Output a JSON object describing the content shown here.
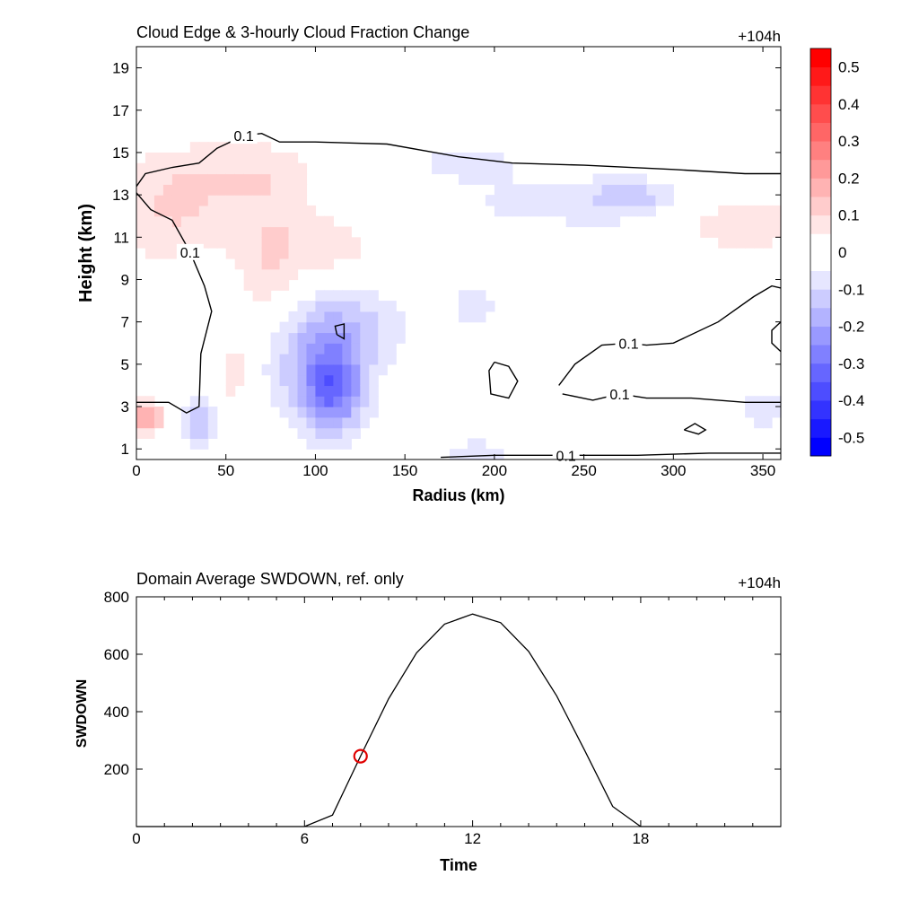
{
  "chart_data": [
    {
      "type": "heatmap",
      "title": "Cloud Edge & 3-hourly Cloud Fraction Change",
      "time_label": "+104h",
      "xlabel": "Radius (km)",
      "ylabel": "Height (km)",
      "xlim": [
        0,
        360
      ],
      "ylim": [
        0.5,
        20
      ],
      "xticks": [
        "0",
        "50",
        "100",
        "150",
        "200",
        "250",
        "300",
        "350"
      ],
      "yticks": [
        "1",
        "3",
        "5",
        "7",
        "9",
        "11",
        "13",
        "15",
        "17",
        "19"
      ],
      "colorbar": {
        "levels": [
          -0.55,
          -0.5,
          -0.45,
          -0.4,
          -0.35,
          -0.3,
          -0.25,
          -0.2,
          -0.15,
          -0.1,
          -0.05,
          0.05,
          0.1,
          0.15,
          0.2,
          0.25,
          0.3,
          0.35,
          0.4,
          0.45,
          0.5,
          0.55
        ],
        "tick_labels": [
          "-0.5",
          "-0.4",
          "-0.3",
          "-0.2",
          "-0.1",
          "0",
          "0.1",
          "0.2",
          "0.3",
          "0.4",
          "0.5"
        ],
        "neg_color": "#0000ff",
        "pos_color": "#ff0000"
      },
      "features": [
        {
          "r": 110,
          "z": 3.8,
          "sr": 12,
          "sz": 1.4,
          "a": -0.26
        },
        {
          "r": 95,
          "z": 5.2,
          "sr": 22,
          "sz": 2.2,
          "a": -0.12
        },
        {
          "r": 120,
          "z": 6.8,
          "sr": 25,
          "sz": 1.4,
          "a": -0.1
        },
        {
          "r": 190,
          "z": 7.8,
          "sr": 14,
          "sz": 1.2,
          "a": -0.06
        },
        {
          "r": 230,
          "z": 12.5,
          "sr": 55,
          "sz": 1.2,
          "a": -0.06
        },
        {
          "r": 275,
          "z": 12.9,
          "sr": 16,
          "sz": 0.6,
          "a": -0.1
        },
        {
          "r": 185,
          "z": 14.6,
          "sr": 25,
          "sz": 0.7,
          "a": -0.06
        },
        {
          "r": 35,
          "z": 2.2,
          "sr": 7,
          "sz": 0.8,
          "a": -0.14
        },
        {
          "r": 350,
          "z": 2.8,
          "sr": 12,
          "sz": 0.6,
          "a": -0.08
        },
        {
          "r": 190,
          "z": 0.9,
          "sr": 25,
          "sz": 0.6,
          "a": -0.06
        },
        {
          "r": 300,
          "z": 5.2,
          "sr": 45,
          "sz": 0.8,
          "a": -0.04
        },
        {
          "r": 5,
          "z": 2.5,
          "sr": 8,
          "sz": 0.5,
          "a": 0.18
        },
        {
          "r": 20,
          "z": 11.8,
          "sr": 25,
          "sz": 1.6,
          "a": 0.09
        },
        {
          "r": 50,
          "z": 14.0,
          "sr": 40,
          "sz": 1.2,
          "a": 0.08
        },
        {
          "r": 75,
          "z": 9.5,
          "sr": 14,
          "sz": 2.8,
          "a": 0.1
        },
        {
          "r": 110,
          "z": 10.5,
          "sr": 20,
          "sz": 1.2,
          "a": 0.08
        },
        {
          "r": 340,
          "z": 11.6,
          "sr": 25,
          "sz": 0.9,
          "a": 0.1
        },
        {
          "r": 55,
          "z": 4.5,
          "sr": 7,
          "sz": 1.5,
          "a": 0.08
        },
        {
          "r": 240,
          "z": 6.0,
          "sr": 12,
          "sz": 1.0,
          "a": 0.05
        },
        {
          "r": 185,
          "z": 10.0,
          "sr": 10,
          "sz": 0.6,
          "a": 0.05
        }
      ],
      "contours": [
        {
          "label": "0.1",
          "points": [
            [
              0,
              13.4
            ],
            [
              5,
              14.0
            ],
            [
              20,
              14.3
            ],
            [
              35,
              14.5
            ],
            [
              45,
              15.2
            ],
            [
              60,
              15.8
            ],
            [
              70,
              15.9
            ],
            [
              80,
              15.5
            ],
            [
              100,
              15.5
            ],
            [
              140,
              15.4
            ],
            [
              180,
              14.8
            ],
            [
              210,
              14.5
            ],
            [
              250,
              14.4
            ],
            [
              300,
              14.2
            ],
            [
              340,
              14.0
            ],
            [
              360,
              14.0
            ]
          ]
        },
        {
          "label": "0.1",
          "points": [
            [
              0,
              13.1
            ],
            [
              8,
              12.3
            ],
            [
              20,
              11.8
            ],
            [
              30,
              10.3
            ],
            [
              38,
              8.7
            ],
            [
              42,
              7.5
            ],
            [
              36,
              5.5
            ],
            [
              35,
              3.0
            ],
            [
              28,
              2.7
            ],
            [
              18,
              3.2
            ],
            [
              0,
              3.2
            ]
          ]
        },
        {
          "label": "0.1",
          "points": [
            [
              236,
              4.0
            ],
            [
              245,
              5.0
            ],
            [
              260,
              5.9
            ],
            [
              275,
              6.0
            ],
            [
              285,
              5.9
            ],
            [
              300,
              6.0
            ],
            [
              325,
              7.0
            ],
            [
              345,
              8.2
            ],
            [
              355,
              8.7
            ],
            [
              360,
              8.6
            ]
          ]
        },
        {
          "label": "0.1",
          "points": [
            [
              238,
              3.6
            ],
            [
              255,
              3.3
            ],
            [
              270,
              3.6
            ],
            [
              285,
              3.4
            ],
            [
              310,
              3.4
            ],
            [
              340,
              3.2
            ],
            [
              360,
              3.2
            ]
          ]
        },
        {
          "label": "",
          "points": [
            [
              360,
              7.0
            ],
            [
              355,
              6.6
            ],
            [
              355,
              6.0
            ],
            [
              360,
              5.6
            ]
          ]
        },
        {
          "label": "",
          "points": [
            [
              200,
              5.1
            ],
            [
              208,
              4.9
            ],
            [
              213,
              4.2
            ],
            [
              208,
              3.4
            ],
            [
              198,
              3.6
            ],
            [
              197,
              4.7
            ],
            [
              200,
              5.1
            ]
          ]
        },
        {
          "label": "",
          "points": [
            [
              112,
              6.4
            ],
            [
              116,
              6.2
            ],
            [
              116,
              6.9
            ],
            [
              111,
              6.8
            ],
            [
              112,
              6.4
            ]
          ]
        },
        {
          "label": "",
          "points": [
            [
              306,
              1.9
            ],
            [
              314,
              1.7
            ],
            [
              318,
              1.9
            ],
            [
              312,
              2.2
            ],
            [
              306,
              1.9
            ]
          ]
        },
        {
          "label": "0.1",
          "points": [
            [
              170,
              0.6
            ],
            [
              200,
              0.7
            ],
            [
              240,
              0.7
            ],
            [
              280,
              0.7
            ],
            [
              320,
              0.8
            ],
            [
              360,
              0.8
            ]
          ]
        }
      ]
    },
    {
      "type": "line",
      "title": "Domain Average SWDOWN, ref. only",
      "time_label": "+104h",
      "xlabel": "Time",
      "ylabel": "SWDOWN",
      "xlim": [
        0,
        23
      ],
      "ylim": [
        0,
        800
      ],
      "xticks": [
        "0",
        "6",
        "12",
        "18"
      ],
      "yticks": [
        "200",
        "400",
        "600",
        "800"
      ],
      "series": [
        {
          "x": [
            0,
            1,
            2,
            3,
            4,
            5,
            6,
            7,
            8,
            9,
            10,
            11,
            12,
            13,
            14,
            15,
            16,
            17,
            18,
            19,
            20,
            21,
            22,
            23
          ],
          "values": [
            0,
            0,
            0,
            0,
            0,
            0,
            0,
            40,
            245,
            445,
            605,
            705,
            740,
            710,
            610,
            455,
            265,
            70,
            0,
            0,
            0,
            0,
            0,
            0
          ]
        }
      ],
      "marker": {
        "x": 8,
        "y": 245,
        "color": "#e00000"
      }
    }
  ]
}
